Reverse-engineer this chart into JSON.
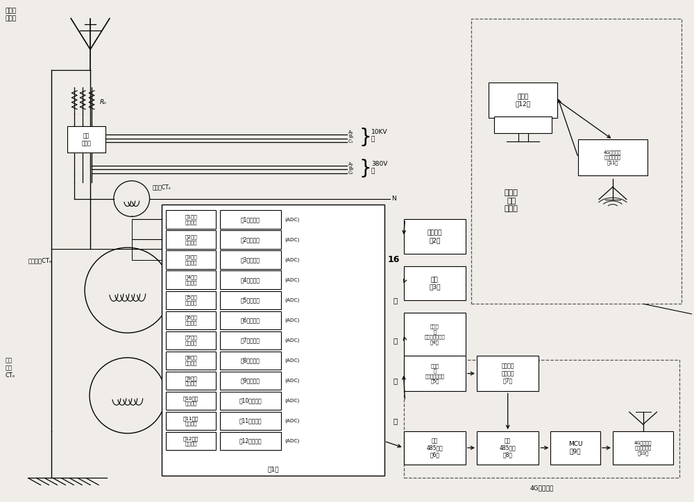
{
  "bg_color": "#f0ede8",
  "signal_filter_labels": [
    "第1信号\n采样滤波",
    "第2信号\n采样滤波",
    "第3信号\n采样滤波",
    "第4信号\n采样滤波",
    "第5信号\n采样滤波",
    "第6信号\n采样滤波",
    "第7信号\n采样滤波",
    "第8信号\n采样滤波",
    "第9信号\n采样滤波",
    "第10信号\n采样滤波",
    "第11信号\n采样滤波",
    "第12信号\n采样滤波"
  ],
  "signal_cond_labels": [
    "第1信号调理",
    "第2信号调理",
    "第3信号调理",
    "第4信号调理",
    "第5信号调理",
    "第6信号调理",
    "第7信号调理",
    "第8信号调理",
    "第9信号调理",
    "第10信号调理",
    "第11信号调理",
    "第12信号调理"
  ],
  "lcd_label": "液晶显示\n（2）",
  "keyboard_label": "键盘\n（3）",
  "sw4_label": "总开关\n与\n分开关状态信号\n（4）",
  "sw5_label": "总开关\n与\n分开关控制信号\n（5）",
  "bus1_label": "第一\n485总线\n（6）",
  "bus2_label": "第二\n485总线\n（8）",
  "mcu_label": "MCU\n（9）",
  "tx_label": "4G无线通信\n（发射）模块\n（10）",
  "rx_label": "4G无线通信\n（接收）模块\n（11）",
  "host_label": "上位机\n（12）",
  "sw_input_label": "开关信号\n输入接口\n（7）",
  "cloud_label": "上位机\n监控\n云平台",
  "hv_ct_label": "高压漏电CTₒ",
  "lv_ct_label": "低压\n漏电\nCTₒ",
  "neutral_ct_label": "中性线CTₒ",
  "transformer_label": "台区\n变压器",
  "ground_label": "高低压\n接地网",
  "rg_label": "Rₒ",
  "v10kv": "10KV\n～",
  "v380v": "380V\n～",
  "neutral_n": "N",
  "comm4g_label": "4G通信装置",
  "system1_label": "（1）"
}
